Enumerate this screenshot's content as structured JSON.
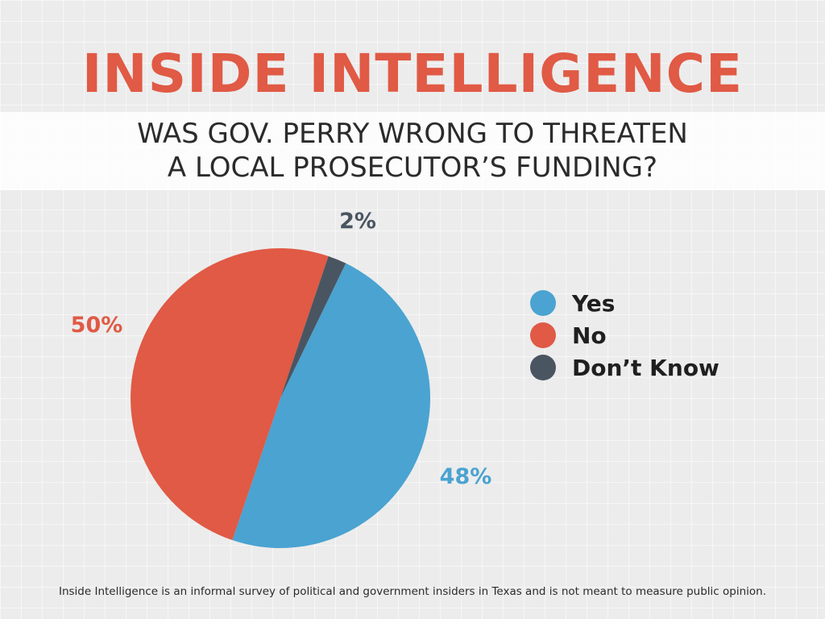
{
  "header": {
    "title": "INSIDE INTELLIGENCE",
    "question_line1": "WAS GOV. PERRY WRONG TO THREATEN",
    "question_line2": "A LOCAL PROSECUTOR’S FUNDING?"
  },
  "colors": {
    "yes": "#4aa3d1",
    "no": "#e05a45",
    "dont_know": "#4a5562",
    "accent": "#e05a45"
  },
  "chart_data": {
    "type": "pie",
    "title": "",
    "categories": [
      "Yes",
      "No",
      "Don’t Know"
    ],
    "values": [
      48,
      50,
      2
    ],
    "labels": [
      "48%",
      "50%",
      "2%"
    ],
    "colors": [
      "#4aa3d1",
      "#e05a45",
      "#4a5562"
    ],
    "legend_placement": "right"
  },
  "footnote": "Inside Intelligence is an informal survey of political and government insiders in Texas and is not meant to measure public opinion."
}
